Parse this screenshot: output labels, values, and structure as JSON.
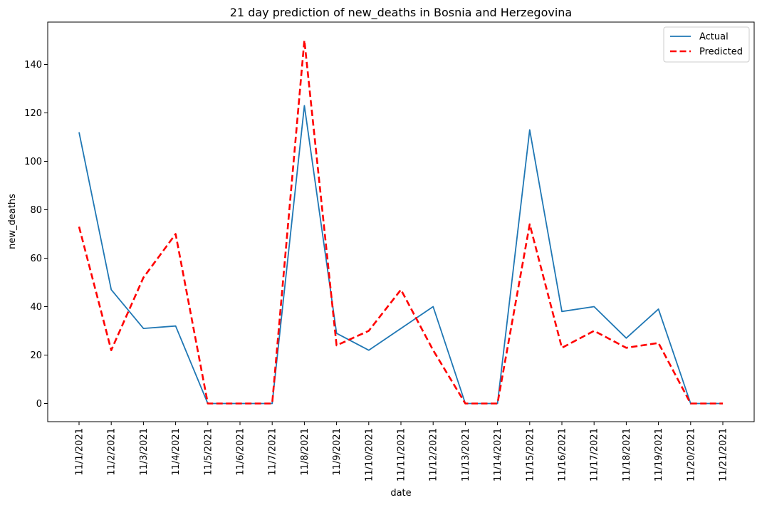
{
  "chart_data": {
    "type": "line",
    "title": "21 day prediction of new_deaths in Bosnia and Herzegovina",
    "xlabel": "date",
    "ylabel": "new_deaths",
    "categories": [
      "11/1/2021",
      "11/2/2021",
      "11/3/2021",
      "11/4/2021",
      "11/5/2021",
      "11/6/2021",
      "11/7/2021",
      "11/8/2021",
      "11/9/2021",
      "11/10/2021",
      "11/11/2021",
      "11/12/2021",
      "11/13/2021",
      "11/14/2021",
      "11/15/2021",
      "11/16/2021",
      "11/17/2021",
      "11/18/2021",
      "11/19/2021",
      "11/20/2021",
      "11/21/2021"
    ],
    "series": [
      {
        "name": "Actual",
        "color": "#1f77b4",
        "style": "solid",
        "values": [
          112,
          47,
          31,
          32,
          0,
          0,
          0,
          123,
          29,
          22,
          31,
          40,
          0,
          0,
          113,
          38,
          40,
          27,
          39,
          0,
          0
        ]
      },
      {
        "name": "Predicted",
        "color": "#ff0000",
        "style": "dashed",
        "values": [
          73,
          22,
          52,
          70,
          0,
          0,
          0,
          150,
          24,
          30,
          47,
          22,
          0,
          0,
          74,
          23,
          30,
          23,
          25,
          0,
          0
        ]
      }
    ],
    "ylim": [
      -7.5,
      157.5
    ],
    "yticks": [
      0,
      20,
      40,
      60,
      80,
      100,
      120,
      140
    ],
    "grid": false,
    "legend_position": "top-right"
  }
}
